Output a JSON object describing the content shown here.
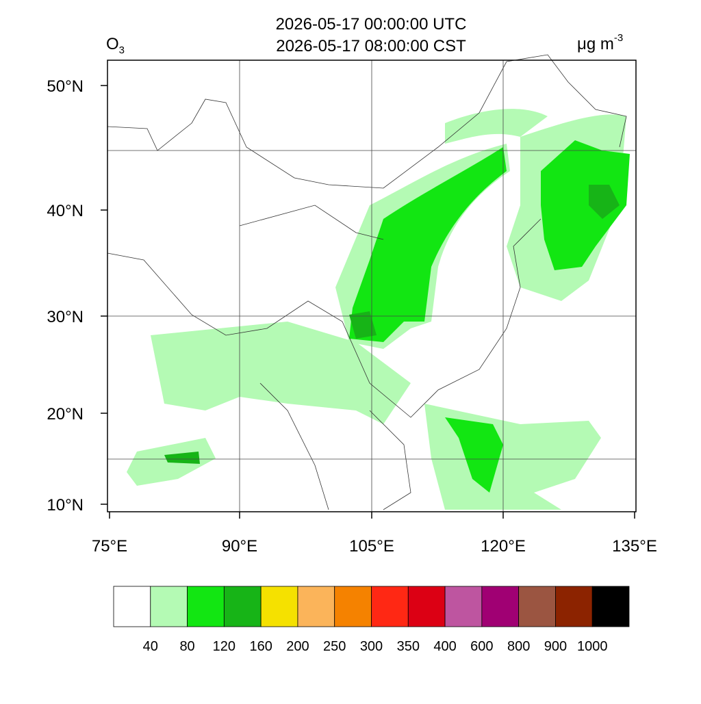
{
  "title": [
    "2026-05-17 00:00:00 UTC",
    "2026-05-17 08:00:00 CST"
  ],
  "variable": {
    "main": "O",
    "sub": "3"
  },
  "units": {
    "main": "μg m",
    "sup": "-3"
  },
  "map": {
    "lon_ticks": [
      "75°E",
      "90°E",
      "105°E",
      "120°E",
      "135°E"
    ],
    "lat_ticks": [
      "50°N",
      "40°N",
      "30°N",
      "20°N",
      "10°N"
    ]
  },
  "colorbar": {
    "levels": [
      40,
      80,
      120,
      160,
      200,
      250,
      300,
      350,
      400,
      600,
      800,
      900,
      1000
    ],
    "colors": [
      "#ffffff",
      "#b4fab4",
      "#12e612",
      "#17b417",
      "#f5e100",
      "#fbb45a",
      "#f58200",
      "#ff2814",
      "#dc0014",
      "#be55a0",
      "#a00073",
      "#9b5541",
      "#8c2300",
      "#000000"
    ]
  }
}
